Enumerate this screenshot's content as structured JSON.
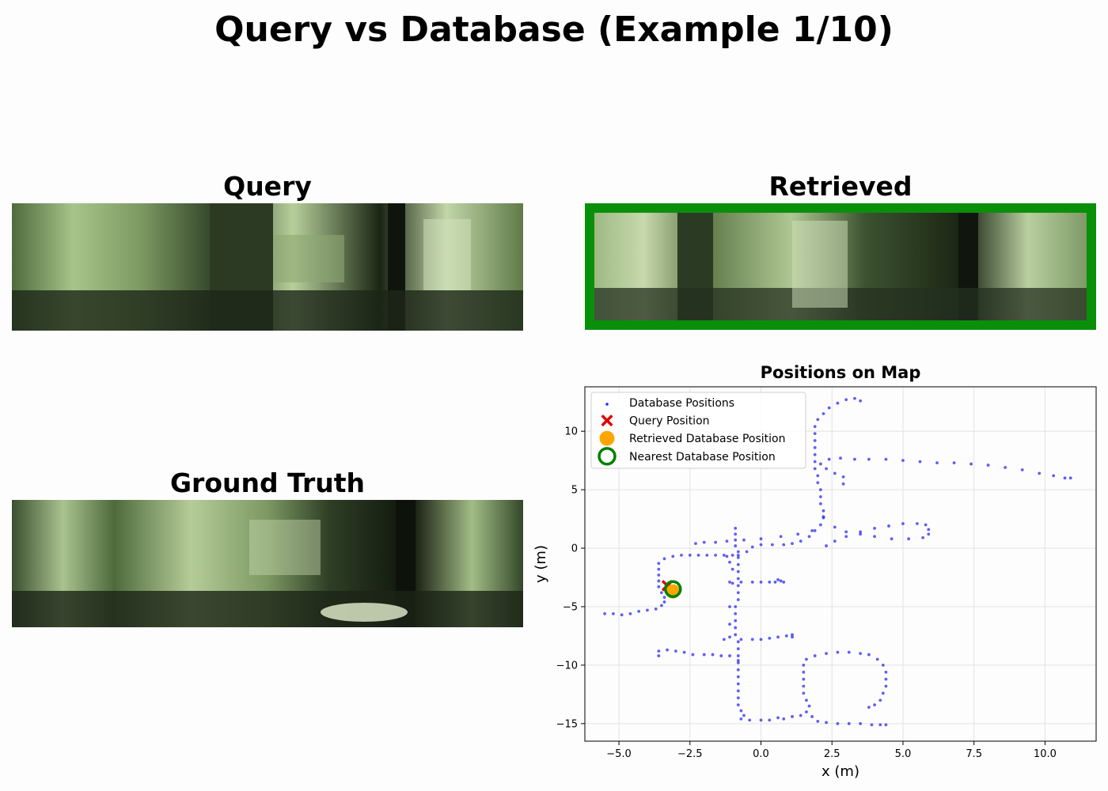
{
  "figure": {
    "title": "Query vs Database (Example 1/10)"
  },
  "panels": {
    "query": {
      "title": "Query"
    },
    "retrieved": {
      "title": "Retrieved",
      "frame_color": "#0a8f0a"
    },
    "ground_truth": {
      "title": "Ground Truth"
    }
  },
  "chart_data": {
    "type": "scatter",
    "title": "Positions on Map",
    "xlabel": "x (m)",
    "ylabel": "y (m)",
    "xlim": [
      -6.2,
      11.8
    ],
    "ylim": [
      -16.5,
      13.8
    ],
    "xticks": [
      -5.0,
      -2.5,
      0.0,
      2.5,
      5.0,
      7.5,
      10.0
    ],
    "xtick_labels": [
      "−5.0",
      "−2.5",
      "0.0",
      "2.5",
      "5.0",
      "7.5",
      "10.0"
    ],
    "yticks": [
      -15,
      -10,
      -5,
      0,
      5,
      10
    ],
    "ytick_labels": [
      "−15",
      "−10",
      "−5",
      "0",
      "5",
      "10"
    ],
    "grid": true,
    "legend_location": "upper left",
    "series": [
      {
        "name": "Database Positions",
        "marker": "dot",
        "color": "#2a2af0",
        "points": [
          [
            -5.5,
            -5.6
          ],
          [
            -5.2,
            -5.6
          ],
          [
            -4.9,
            -5.7
          ],
          [
            -4.6,
            -5.6
          ],
          [
            -4.3,
            -5.4
          ],
          [
            -4.0,
            -5.3
          ],
          [
            -3.7,
            -5.2
          ],
          [
            -3.5,
            -4.9
          ],
          [
            -3.4,
            -4.6
          ],
          [
            -3.4,
            -4.2
          ],
          [
            -3.5,
            -3.8
          ],
          [
            -3.6,
            -3.3
          ],
          [
            -3.6,
            -2.8
          ],
          [
            -3.6,
            -2.3
          ],
          [
            -3.6,
            -1.8
          ],
          [
            -3.6,
            -1.3
          ],
          [
            -3.4,
            -0.9
          ],
          [
            -3.1,
            -0.7
          ],
          [
            -2.8,
            -0.6
          ],
          [
            -2.5,
            -0.6
          ],
          [
            -2.2,
            -0.6
          ],
          [
            -1.9,
            -0.6
          ],
          [
            -1.6,
            -0.6
          ],
          [
            -1.3,
            -0.6
          ],
          [
            -1.0,
            -0.6
          ],
          [
            -0.8,
            -0.6
          ],
          [
            -0.9,
            1.7
          ],
          [
            -0.9,
            1.2
          ],
          [
            -0.9,
            0.7
          ],
          [
            -0.9,
            0.2
          ],
          [
            -0.8,
            -0.3
          ],
          [
            -0.8,
            -0.8
          ],
          [
            -0.8,
            -1.4
          ],
          [
            -0.8,
            -2.0
          ],
          [
            -0.8,
            -2.6
          ],
          [
            -0.8,
            -3.2
          ],
          [
            -0.8,
            -3.8
          ],
          [
            -0.8,
            -4.4
          ],
          [
            -0.9,
            -5.0
          ],
          [
            -0.9,
            -5.6
          ],
          [
            -0.9,
            -6.2
          ],
          [
            -0.9,
            -6.8
          ],
          [
            -0.9,
            -7.4
          ],
          [
            -0.8,
            -8.0
          ],
          [
            -0.8,
            -8.6
          ],
          [
            -0.8,
            -9.2
          ],
          [
            -0.8,
            -9.8
          ],
          [
            -0.8,
            -10.4
          ],
          [
            -0.8,
            -11.0
          ],
          [
            -0.8,
            -11.6
          ],
          [
            -0.8,
            -12.2
          ],
          [
            -0.8,
            -12.8
          ],
          [
            -0.8,
            -13.4
          ],
          [
            -0.7,
            -13.9
          ],
          [
            -0.6,
            -14.3
          ],
          [
            -1.2,
            -0.7
          ],
          [
            -1.1,
            -1.2
          ],
          [
            -1.0,
            -1.8
          ],
          [
            -1.0,
            -3.0
          ],
          [
            -1.1,
            -5.0
          ],
          [
            -1.1,
            -6.5
          ],
          [
            -1.1,
            -7.6
          ],
          [
            -1.3,
            -7.8
          ],
          [
            -1.1,
            -2.9
          ],
          [
            -0.7,
            -2.9
          ],
          [
            -0.3,
            -2.9
          ],
          [
            0.0,
            -2.9
          ],
          [
            0.3,
            -2.9
          ],
          [
            0.5,
            -2.9
          ],
          [
            0.7,
            -2.8
          ],
          [
            0.8,
            -2.9
          ],
          [
            0.6,
            -2.7
          ],
          [
            -0.7,
            -7.8
          ],
          [
            -0.3,
            -7.8
          ],
          [
            0.0,
            -7.8
          ],
          [
            0.3,
            -7.7
          ],
          [
            0.6,
            -7.6
          ],
          [
            0.9,
            -7.5
          ],
          [
            1.1,
            -7.4
          ],
          [
            1.1,
            -7.6
          ],
          [
            -3.6,
            -9.2
          ],
          [
            -3.6,
            -8.8
          ],
          [
            -3.3,
            -8.7
          ],
          [
            -3.0,
            -8.8
          ],
          [
            -2.7,
            -8.9
          ],
          [
            -2.4,
            -9.1
          ],
          [
            -2.0,
            -9.1
          ],
          [
            -1.7,
            -9.1
          ],
          [
            -1.4,
            -9.2
          ],
          [
            -1.1,
            -9.2
          ],
          [
            -0.8,
            -9.6
          ],
          [
            -0.7,
            -14.6
          ],
          [
            -0.4,
            -14.7
          ],
          [
            0.0,
            -14.7
          ],
          [
            0.3,
            -14.7
          ],
          [
            0.6,
            -14.5
          ],
          [
            0.8,
            -14.6
          ],
          [
            1.1,
            -14.4
          ],
          [
            1.4,
            -14.3
          ],
          [
            1.6,
            -14.0
          ],
          [
            1.8,
            -14.4
          ],
          [
            2.0,
            -14.8
          ],
          [
            2.3,
            -14.9
          ],
          [
            2.7,
            -15.0
          ],
          [
            3.1,
            -15.0
          ],
          [
            3.5,
            -15.0
          ],
          [
            3.9,
            -15.1
          ],
          [
            4.2,
            -15.1
          ],
          [
            4.4,
            -15.1
          ],
          [
            1.7,
            -13.5
          ],
          [
            1.6,
            -13.0
          ],
          [
            1.5,
            -12.4
          ],
          [
            1.5,
            -11.8
          ],
          [
            1.5,
            -11.2
          ],
          [
            1.5,
            -10.6
          ],
          [
            1.5,
            -10.0
          ],
          [
            1.6,
            -9.5
          ],
          [
            1.9,
            -9.2
          ],
          [
            2.3,
            -9.0
          ],
          [
            2.7,
            -8.9
          ],
          [
            3.1,
            -8.9
          ],
          [
            3.5,
            -9.0
          ],
          [
            3.8,
            -9.1
          ],
          [
            4.1,
            -9.5
          ],
          [
            4.3,
            -10.0
          ],
          [
            4.4,
            -10.6
          ],
          [
            4.4,
            -11.2
          ],
          [
            4.4,
            -11.8
          ],
          [
            4.3,
            -12.4
          ],
          [
            4.2,
            -13.0
          ],
          [
            4.0,
            -13.4
          ],
          [
            3.8,
            -13.6
          ],
          [
            -0.5,
            -0.3
          ],
          [
            -0.3,
            0.1
          ],
          [
            0.0,
            0.3
          ],
          [
            0.4,
            0.3
          ],
          [
            0.8,
            0.3
          ],
          [
            1.1,
            0.4
          ],
          [
            1.4,
            0.6
          ],
          [
            1.7,
            1.0
          ],
          [
            1.9,
            1.5
          ],
          [
            2.1,
            2.0
          ],
          [
            2.2,
            2.6
          ],
          [
            2.2,
            3.2
          ],
          [
            2.1,
            3.8
          ],
          [
            2.1,
            4.4
          ],
          [
            2.1,
            5.0
          ],
          [
            2.0,
            5.6
          ],
          [
            2.0,
            6.2
          ],
          [
            1.9,
            6.8
          ],
          [
            1.9,
            7.4
          ],
          [
            1.9,
            8.0
          ],
          [
            1.9,
            8.6
          ],
          [
            1.9,
            9.2
          ],
          [
            1.9,
            9.8
          ],
          [
            1.9,
            10.4
          ],
          [
            2.0,
            11.0
          ],
          [
            2.2,
            11.5
          ],
          [
            2.4,
            12.0
          ],
          [
            2.7,
            12.4
          ],
          [
            3.0,
            12.7
          ],
          [
            3.3,
            12.8
          ],
          [
            3.5,
            12.6
          ],
          [
            2.1,
            7.2
          ],
          [
            2.4,
            7.6
          ],
          [
            2.8,
            7.7
          ],
          [
            3.3,
            7.6
          ],
          [
            3.8,
            7.6
          ],
          [
            4.4,
            7.6
          ],
          [
            5.0,
            7.5
          ],
          [
            5.6,
            7.4
          ],
          [
            6.2,
            7.3
          ],
          [
            6.8,
            7.3
          ],
          [
            7.4,
            7.2
          ],
          [
            8.0,
            7.1
          ],
          [
            8.6,
            6.9
          ],
          [
            9.2,
            6.7
          ],
          [
            9.8,
            6.4
          ],
          [
            10.3,
            6.2
          ],
          [
            10.7,
            6.0
          ],
          [
            10.9,
            6.0
          ],
          [
            2.3,
            6.8
          ],
          [
            2.6,
            6.4
          ],
          [
            2.9,
            6.1
          ],
          [
            2.9,
            5.5
          ],
          [
            -2.3,
            0.4
          ],
          [
            -2.0,
            0.5
          ],
          [
            -1.6,
            0.5
          ],
          [
            -1.2,
            0.6
          ],
          [
            -0.6,
            0.7
          ],
          [
            0.0,
            0.8
          ],
          [
            0.7,
            1.0
          ],
          [
            1.3,
            1.2
          ],
          [
            1.8,
            1.5
          ],
          [
            2.2,
            2.7
          ],
          [
            2.6,
            1.8
          ],
          [
            3.0,
            1.4
          ],
          [
            3.5,
            1.2
          ],
          [
            4.0,
            1.0
          ],
          [
            4.6,
            0.8
          ],
          [
            5.2,
            0.8
          ],
          [
            5.7,
            0.9
          ],
          [
            5.9,
            1.2
          ],
          [
            5.9,
            1.6
          ],
          [
            5.8,
            2.0
          ],
          [
            5.5,
            2.1
          ],
          [
            5.0,
            2.1
          ],
          [
            4.5,
            1.9
          ],
          [
            4.0,
            1.7
          ],
          [
            3.5,
            1.4
          ],
          [
            3.0,
            1.0
          ],
          [
            2.6,
            0.6
          ],
          [
            2.3,
            0.2
          ]
        ]
      },
      {
        "name": "Query Position",
        "marker": "x",
        "color": "#e00000",
        "points": [
          [
            -3.3,
            -3.2
          ]
        ]
      },
      {
        "name": "Retrieved Database Position",
        "marker": "filled-circle",
        "color": "#ffa500",
        "points": [
          [
            -3.1,
            -3.7
          ]
        ]
      },
      {
        "name": "Nearest Database Position",
        "marker": "open-circle",
        "color": "#008000",
        "points": [
          [
            -3.1,
            -3.5
          ]
        ]
      }
    ]
  }
}
